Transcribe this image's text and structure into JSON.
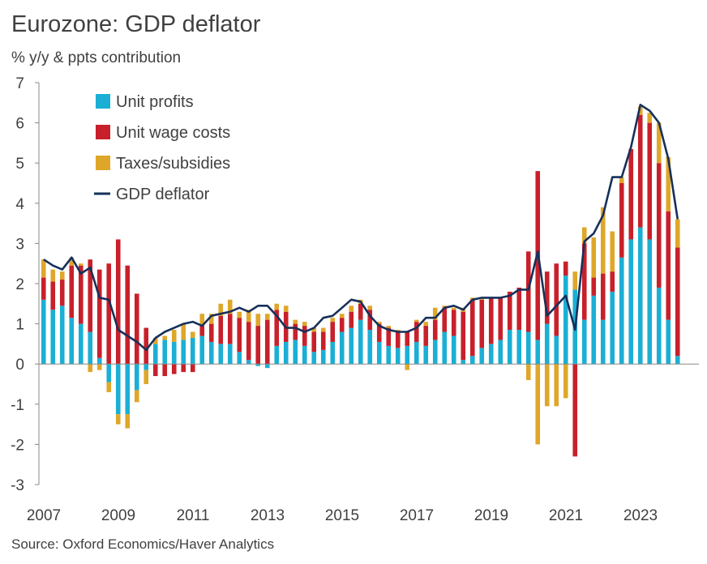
{
  "title": "Eurozone: GDP deflator",
  "subtitle": "% y/y & ppts contribution",
  "source": "Source: Oxford Economics/Haver Analytics",
  "colors": {
    "unit_profits": "#1bafd5",
    "unit_wage_costs": "#c8202a",
    "taxes_subsidies": "#dfa72a",
    "gdp_deflator": "#17305a",
    "axis": "#888888"
  },
  "chart_data": {
    "type": "bar",
    "stacked": true,
    "title": "Eurozone: GDP deflator",
    "ylabel": "% y/y & ppts contribution",
    "xlabel": "",
    "ylim": [
      -3,
      7
    ],
    "yticks": [
      -3,
      -2,
      -1,
      0,
      1,
      2,
      3,
      4,
      5,
      6,
      7
    ],
    "xtick_labels": [
      "2007",
      "2009",
      "2011",
      "2013",
      "2015",
      "2017",
      "2019",
      "2021",
      "2023"
    ],
    "start_period": "2007Q1",
    "frequency": "quarterly",
    "legend": [
      "Unit profits",
      "Unit wage costs",
      "Taxes/subsidies",
      "GDP deflator"
    ],
    "legend_position": "top-left",
    "series": [
      {
        "name": "Unit profits",
        "kind": "bar",
        "values": [
          1.6,
          1.35,
          1.45,
          1.15,
          1.0,
          0.8,
          0.15,
          -0.45,
          -1.25,
          -1.25,
          -0.65,
          -0.15,
          0.5,
          0.6,
          0.55,
          0.6,
          0.65,
          0.7,
          0.55,
          0.5,
          0.5,
          0.3,
          0.1,
          -0.05,
          -0.1,
          0.45,
          0.55,
          0.6,
          0.45,
          0.3,
          0.35,
          0.55,
          0.8,
          0.9,
          1.1,
          0.85,
          0.55,
          0.45,
          0.4,
          0.45,
          0.55,
          0.45,
          0.6,
          0.8,
          0.7,
          0.1,
          0.2,
          0.4,
          0.5,
          0.6,
          0.85,
          0.85,
          0.8,
          0.6,
          1.0,
          0.7,
          2.2,
          1.85,
          1.1,
          1.7,
          1.1,
          1.8,
          2.65,
          3.1,
          3.4,
          3.1,
          1.9,
          1.1,
          0.2
        ]
      },
      {
        "name": "Unit wage costs",
        "kind": "bar",
        "values": [
          0.55,
          0.7,
          0.65,
          1.3,
          1.45,
          1.8,
          2.2,
          2.5,
          3.1,
          2.45,
          1.75,
          0.9,
          -0.3,
          -0.3,
          -0.25,
          -0.2,
          -0.2,
          0.25,
          0.45,
          0.7,
          0.75,
          0.85,
          0.95,
          0.95,
          1.1,
          0.9,
          0.75,
          0.4,
          0.5,
          0.5,
          0.45,
          0.5,
          0.35,
          0.4,
          0.4,
          0.5,
          0.45,
          0.45,
          0.4,
          0.35,
          0.5,
          0.5,
          0.5,
          0.6,
          0.65,
          1.2,
          1.4,
          1.2,
          1.15,
          1.05,
          0.95,
          1.05,
          2.0,
          4.2,
          1.3,
          1.8,
          0.35,
          -2.3,
          1.9,
          0.45,
          1.15,
          0.5,
          1.85,
          2.25,
          2.8,
          2.9,
          3.1,
          2.7,
          2.7
        ]
      },
      {
        "name": "Taxes/subsidies",
        "kind": "bar",
        "values": [
          0.45,
          0.3,
          0.2,
          0.2,
          0.05,
          -0.2,
          -0.15,
          -0.25,
          -0.25,
          -0.35,
          -0.3,
          -0.35,
          0.15,
          0.1,
          0.3,
          0.4,
          0.15,
          0.3,
          0.25,
          0.3,
          0.35,
          0.15,
          0.3,
          0.3,
          0.15,
          0.15,
          0.15,
          0.1,
          0.1,
          0.1,
          0.1,
          0.1,
          0.1,
          0.15,
          0.1,
          0.1,
          0.05,
          0.05,
          0.05,
          -0.15,
          0.05,
          0.1,
          0.3,
          0.05,
          0.05,
          0.1,
          0.05,
          0.05,
          0.0,
          0.0,
          0.0,
          0.0,
          -0.4,
          -2.0,
          -1.05,
          -1.05,
          -0.85,
          0.45,
          0.4,
          1.0,
          1.65,
          1.0,
          0.15,
          0.0,
          0.2,
          0.25,
          1.0,
          1.35,
          0.7
        ]
      },
      {
        "name": "GDP deflator",
        "kind": "line",
        "values": [
          2.6,
          2.45,
          2.35,
          2.65,
          2.25,
          2.4,
          1.65,
          1.6,
          0.85,
          0.7,
          0.55,
          0.35,
          0.65,
          0.8,
          0.9,
          1.0,
          1.05,
          0.95,
          1.2,
          1.25,
          1.3,
          1.4,
          1.3,
          1.45,
          1.45,
          1.2,
          0.9,
          0.9,
          0.8,
          0.9,
          1.15,
          1.2,
          1.4,
          1.6,
          1.55,
          1.2,
          0.95,
          0.85,
          0.8,
          0.8,
          0.9,
          1.15,
          1.15,
          1.4,
          1.45,
          1.35,
          1.6,
          1.65,
          1.65,
          1.65,
          1.7,
          1.85,
          1.85,
          2.8,
          1.2,
          1.45,
          1.7,
          0.85,
          3.05,
          3.25,
          3.7,
          4.65,
          4.65,
          5.4,
          6.45,
          6.3,
          6.0,
          5.1,
          3.6
        ]
      }
    ]
  }
}
